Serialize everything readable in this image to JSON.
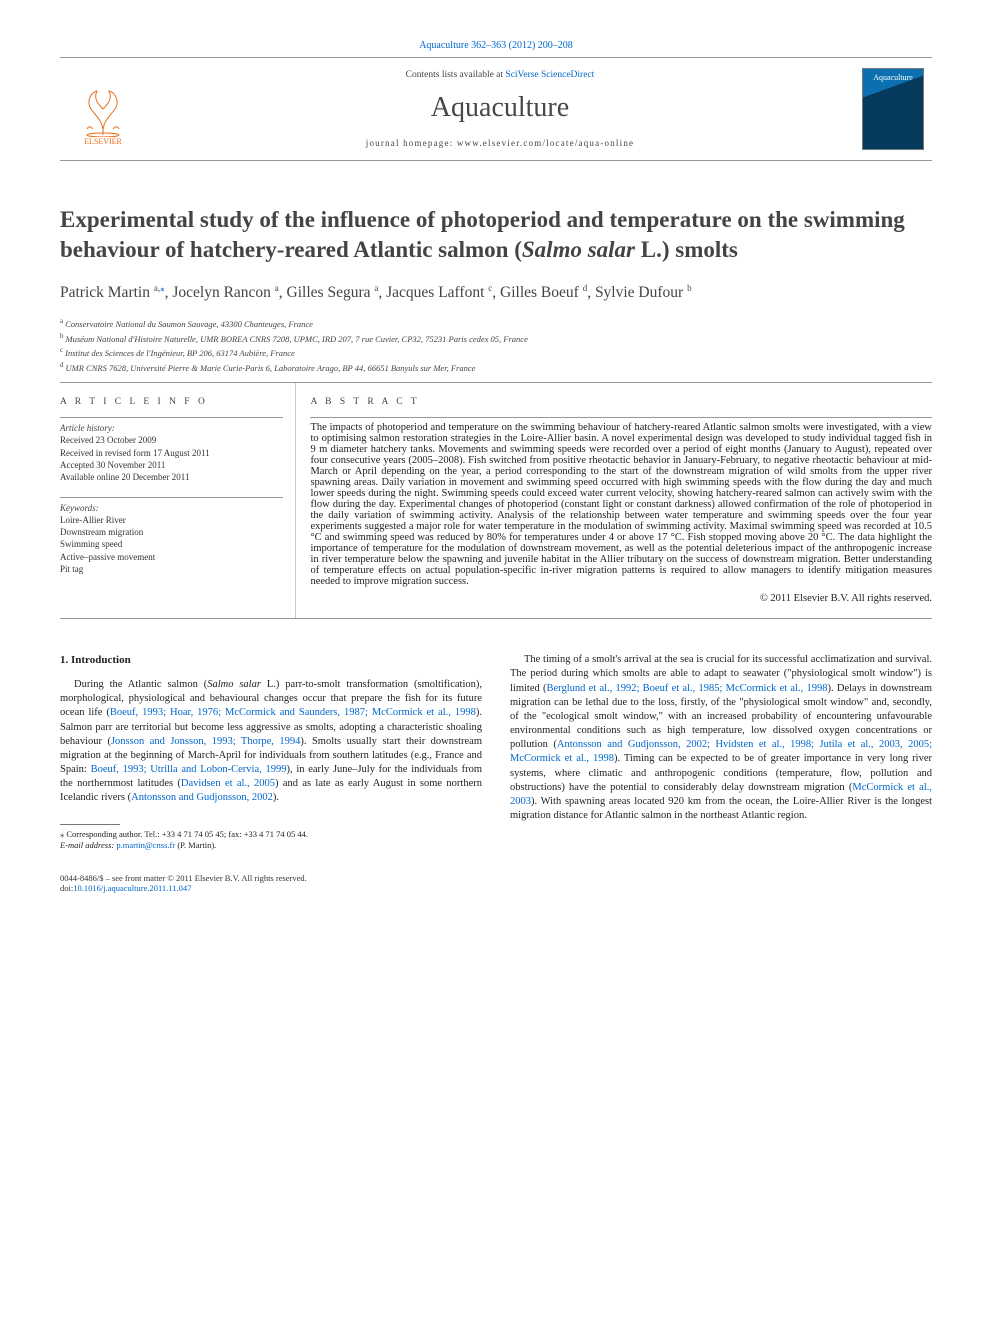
{
  "header": {
    "cite": "Aquaculture 362–363 (2012) 200–208",
    "cite_link": "Aquaculture 362–363 (2012) 200–208",
    "contents_prefix": "Contents lists available at ",
    "contents_link": "SciVerse ScienceDirect",
    "journal": "Aquaculture",
    "homepage_prefix": "journal homepage: ",
    "homepage": "www.elsevier.com/locate/aqua-online",
    "elsevier_label": "ELSEVIER",
    "cover_label": "Aquaculture",
    "elsevier_color": "#e9711c",
    "cover_bg_top": "#0b6fb0",
    "cover_bg_bot": "#063a5c"
  },
  "title": {
    "pre": "Experimental study of the influence of photoperiod and temperature on the swimming behaviour of hatchery-reared Atlantic salmon (",
    "ital": "Salmo salar",
    "post": " L.) smolts"
  },
  "authors": [
    {
      "name": "Patrick Martin",
      "aff": "a,",
      "star": "⁎"
    },
    {
      "name": "Jocelyn Rancon",
      "aff": "a"
    },
    {
      "name": "Gilles Segura",
      "aff": "a"
    },
    {
      "name": "Jacques Laffont",
      "aff": "c"
    },
    {
      "name": "Gilles Boeuf",
      "aff": "d"
    },
    {
      "name": "Sylvie Dufour",
      "aff": "b"
    }
  ],
  "affiliations": [
    {
      "key": "a",
      "text": "Conservatoire National du Saumon Sauvage, 43300 Chanteuges, France"
    },
    {
      "key": "b",
      "text": "Muséum National d'Histoire Naturelle, UMR BOREA CNRS 7208, UPMC, IRD 207, 7 rue Cuvier, CP32, 75231 Paris cedex 05, France"
    },
    {
      "key": "c",
      "text": "Institut des Sciences de l'Ingénieur, BP 206, 63174 Aubière, France"
    },
    {
      "key": "d",
      "text": "UMR CNRS 7628, Université Pierre & Marie Curie-Paris 6, Laboratoire Arago, BP 44, 66651 Banyuls sur Mer, France"
    }
  ],
  "info": {
    "head": "A R T I C L E   I N F O",
    "history_label": "Article history:",
    "history": [
      "Received 23 October 2009",
      "Received in revised form 17 August 2011",
      "Accepted 30 November 2011",
      "Available online 20 December 2011"
    ],
    "keywords_label": "Keywords:",
    "keywords": [
      "Loire-Allier River",
      "Downstream migration",
      "Swimming speed",
      "Active–passive movement",
      "Pit tag"
    ]
  },
  "abstract": {
    "head": "A B S T R A C T",
    "text": "The impacts of photoperiod and temperature on the swimming behaviour of hatchery-reared Atlantic salmon smolts were investigated, with a view to optimising salmon restoration strategies in the Loire-Allier basin. A novel experimental design was developed to study individual tagged fish in 9 m diameter hatchery tanks. Movements and swimming speeds were recorded over a period of eight months (January to August), repeated over four consecutive years (2005–2008). Fish switched from positive rheotactic behavior in January-February, to negative rheotactic behaviour at mid-March or April depending on the year, a period corresponding to the start of the downstream migration of wild smolts from the upper river spawning areas. Daily variation in movement and swimming speed occurred with high swimming speeds with the flow during the day and much lower speeds during the night. Swimming speeds could exceed water current velocity, showing hatchery-reared salmon can actively swim with the flow during the day. Experimental changes of photoperiod (constant light or constant darkness) allowed confirmation of the role of photoperiod in the daily variation of swimming activity. Analysis of the relationship between water temperature and swimming speeds over the four year experiments suggested a major role for water temperature in the modulation of swimming activity. Maximal swimming speed was recorded at 10.5 °C and swimming speed was reduced by 80% for temperatures under 4 or above 17 °C. Fish stopped moving above 20 °C. The data highlight the importance of temperature for the modulation of downstream movement, as well as the potential deleterious impact of the anthropogenic increase in river temperature below the spawning and juvenile habitat in the Allier tributary on the success of downstream migration. Better understanding of temperature effects on actual population-specific in-river migration patterns is required to allow managers to identify mitigation measures needed to improve migration success.",
    "copyright": "© 2011 Elsevier B.V. All rights reserved."
  },
  "body": {
    "intro_head": "1. Introduction",
    "col1_p1_a": "During the Atlantic salmon (",
    "col1_p1_ital": "Salmo salar",
    "col1_p1_b": " L.) parr-to-smolt transformation (smoltification), morphological, physiological and behavioural changes occur that prepare the fish for its future ocean life (",
    "col1_p1_link1": "Boeuf, 1993; Hoar, 1976; McCormick and Saunders, 1987; McCormick et al., 1998",
    "col1_p1_c": "). Salmon parr are territorial but become less aggressive as smolts, adopting a characteristic shoaling behaviour (",
    "col1_p1_link2": "Jonsson and Jonsson, 1993; Thorpe, 1994",
    "col1_p1_d": "). Smolts usually start their downstream migration at the beginning of March-April for individuals from southern latitudes (e.g., France and Spain: ",
    "col1_p1_link3": "Boeuf, 1993; Utrilla and Lobon-Cervia, 1999",
    "col1_p1_e": "), in early June–July for the individuals from the northernmost latitudes (",
    "col1_p1_link4": "Davidsen et al., 2005",
    "col1_p1_f": ") and as late as early August in some northern Icelandic rivers (",
    "col1_p1_link5": "Antonsson and Gudjonsson, 2002",
    "col1_p1_g": ").",
    "col2_p1_a": "The timing of a smolt's arrival at the sea is crucial for its successful acclimatization and survival. The period during which smolts are able to adapt to seawater (\"physiological smolt window\") is limited (",
    "col2_p1_link1": "Berglund et al., 1992; Boeuf et al., 1985; McCormick et al., 1998",
    "col2_p1_b": "). Delays in downstream migration can be lethal due to the loss, firstly, of the \"physiological smolt window\" and, secondly, of the \"ecological smolt window,\" with an increased probability of encountering unfavourable environmental conditions such as high temperature, low dissolved oxygen concentrations or pollution (",
    "col2_p1_link2": "Antonsson and Gudjonsson, 2002; Hvidsten et al., 1998; Jutila et al., 2003, 2005; McCormick et al., 1998",
    "col2_p1_c": "). Timing can be expected to be of greater importance in very long river systems, where climatic and anthropogenic conditions (temperature, flow, pollution and obstructions) have the potential to considerably delay downstream migration (",
    "col2_p1_link3": "McCormick et al., 2003",
    "col2_p1_d": "). With spawning areas located 920 km from the ocean, the Loire-Allier River is the longest migration distance for Atlantic salmon in the northeast Atlantic region."
  },
  "footnote": {
    "star": "⁎",
    "line1": "Corresponding author. Tel.: +33 4 71 74 05 45; fax: +33 4 71 74 05 44.",
    "email_label": "E-mail address:",
    "email": "p.martin@cnss.fr",
    "email_tail": " (P. Martin)."
  },
  "footer": {
    "line1": "0044-8486/$ – see front matter © 2011 Elsevier B.V. All rights reserved.",
    "doi_label": "doi:",
    "doi": "10.1016/j.aquaculture.2011.11.047"
  },
  "style": {
    "link_color": "#0066cc",
    "text_color": "#222222",
    "title_color": "#444444",
    "rule_color": "#999999"
  }
}
